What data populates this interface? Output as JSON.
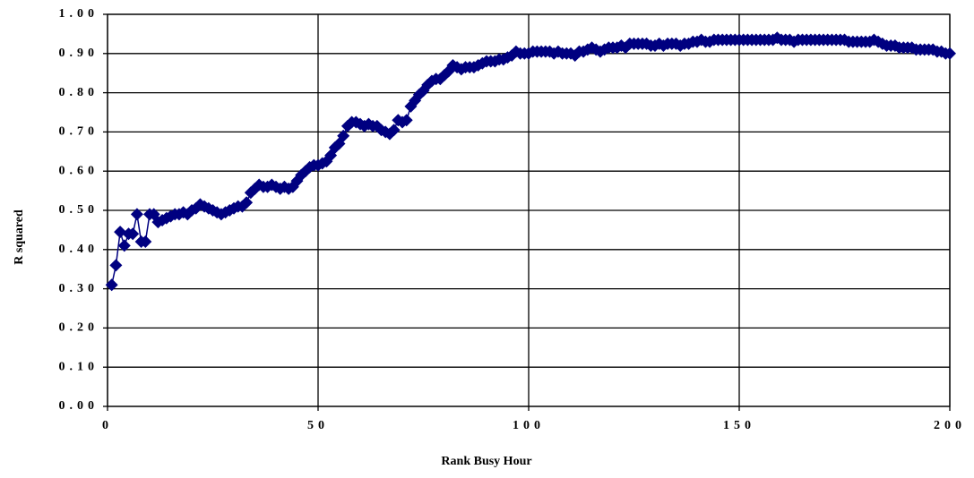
{
  "chart_data": {
    "type": "line",
    "xlabel": "Rank Busy Hour",
    "ylabel": "R squared",
    "color": "#000080",
    "marker": "diamond",
    "grid": true,
    "xlim": [
      0,
      200
    ],
    "xticks": [
      0,
      50,
      100,
      150,
      200
    ],
    "ylim": [
      0,
      1
    ],
    "yticks": [
      {
        "value": 0,
        "label": "0.00"
      },
      {
        "value": 0.1,
        "label": "0.10"
      },
      {
        "value": 0.2,
        "label": "0.20"
      },
      {
        "value": 0.3,
        "label": "0.30"
      },
      {
        "value": 0.4,
        "label": "0.40"
      },
      {
        "value": 0.5,
        "label": "0.50"
      },
      {
        "value": 0.6,
        "label": "0.60"
      },
      {
        "value": 0.7,
        "label": "0.70"
      },
      {
        "value": 0.8,
        "label": "0.80"
      },
      {
        "value": 0.9,
        "label": "0.90"
      },
      {
        "value": 1,
        "label": "1.00"
      }
    ],
    "x": [
      1,
      2,
      3,
      4,
      5,
      6,
      7,
      8,
      9,
      10,
      11,
      12,
      13,
      14,
      15,
      16,
      17,
      18,
      19,
      20,
      21,
      22,
      23,
      24,
      25,
      26,
      27,
      28,
      29,
      30,
      31,
      32,
      33,
      34,
      35,
      36,
      37,
      38,
      39,
      40,
      41,
      42,
      43,
      44,
      45,
      46,
      47,
      48,
      49,
      50,
      51,
      52,
      53,
      54,
      55,
      56,
      57,
      58,
      59,
      60,
      61,
      62,
      63,
      64,
      65,
      66,
      67,
      68,
      69,
      70,
      71,
      72,
      73,
      74,
      75,
      76,
      77,
      78,
      79,
      80,
      81,
      82,
      83,
      84,
      85,
      86,
      87,
      88,
      89,
      90,
      91,
      92,
      93,
      94,
      95,
      96,
      97,
      98,
      99,
      100,
      101,
      102,
      103,
      104,
      105,
      106,
      107,
      108,
      109,
      110,
      111,
      112,
      113,
      114,
      115,
      116,
      117,
      118,
      119,
      120,
      121,
      122,
      123,
      124,
      125,
      126,
      127,
      128,
      129,
      130,
      131,
      132,
      133,
      134,
      135,
      136,
      137,
      138,
      139,
      140,
      141,
      142,
      143,
      144,
      145,
      146,
      147,
      148,
      149,
      150,
      151,
      152,
      153,
      154,
      155,
      156,
      157,
      158,
      159,
      160,
      161,
      162,
      163,
      164,
      165,
      166,
      167,
      168,
      169,
      170,
      171,
      172,
      173,
      174,
      175,
      176,
      177,
      178,
      179,
      180,
      181,
      182,
      183,
      184,
      185,
      186,
      187,
      188,
      189,
      190,
      191,
      192,
      193,
      194,
      195,
      196,
      197,
      198,
      199,
      200
    ],
    "values": [
      0.31,
      0.36,
      0.445,
      0.41,
      0.44,
      0.44,
      0.49,
      0.42,
      0.42,
      0.49,
      0.49,
      0.47,
      0.475,
      0.48,
      0.485,
      0.49,
      0.49,
      0.495,
      0.49,
      0.5,
      0.505,
      0.515,
      0.51,
      0.505,
      0.5,
      0.495,
      0.49,
      0.495,
      0.5,
      0.505,
      0.51,
      0.51,
      0.52,
      0.545,
      0.555,
      0.565,
      0.56,
      0.56,
      0.565,
      0.56,
      0.555,
      0.56,
      0.555,
      0.56,
      0.575,
      0.59,
      0.6,
      0.61,
      0.615,
      0.615,
      0.62,
      0.625,
      0.64,
      0.66,
      0.67,
      0.69,
      0.715,
      0.725,
      0.725,
      0.72,
      0.715,
      0.72,
      0.715,
      0.715,
      0.705,
      0.7,
      0.695,
      0.705,
      0.73,
      0.725,
      0.73,
      0.765,
      0.78,
      0.795,
      0.805,
      0.82,
      0.83,
      0.835,
      0.835,
      0.845,
      0.855,
      0.87,
      0.865,
      0.86,
      0.865,
      0.865,
      0.865,
      0.87,
      0.875,
      0.88,
      0.88,
      0.88,
      0.885,
      0.885,
      0.89,
      0.895,
      0.905,
      0.9,
      0.9,
      0.9,
      0.905,
      0.905,
      0.905,
      0.905,
      0.905,
      0.9,
      0.905,
      0.9,
      0.9,
      0.9,
      0.895,
      0.905,
      0.905,
      0.91,
      0.915,
      0.91,
      0.905,
      0.91,
      0.915,
      0.915,
      0.915,
      0.92,
      0.915,
      0.925,
      0.925,
      0.925,
      0.925,
      0.925,
      0.92,
      0.92,
      0.925,
      0.92,
      0.925,
      0.925,
      0.925,
      0.92,
      0.925,
      0.925,
      0.93,
      0.93,
      0.935,
      0.93,
      0.93,
      0.935,
      0.935,
      0.935,
      0.935,
      0.935,
      0.935,
      0.935,
      0.935,
      0.935,
      0.935,
      0.935,
      0.935,
      0.935,
      0.935,
      0.935,
      0.94,
      0.935,
      0.935,
      0.935,
      0.93,
      0.935,
      0.935,
      0.935,
      0.935,
      0.935,
      0.935,
      0.935,
      0.935,
      0.935,
      0.935,
      0.935,
      0.935,
      0.93,
      0.93,
      0.93,
      0.93,
      0.93,
      0.93,
      0.935,
      0.93,
      0.925,
      0.92,
      0.92,
      0.92,
      0.915,
      0.915,
      0.915,
      0.915,
      0.91,
      0.91,
      0.91,
      0.91,
      0.91,
      0.905,
      0.905,
      0.9,
      0.9
    ]
  }
}
